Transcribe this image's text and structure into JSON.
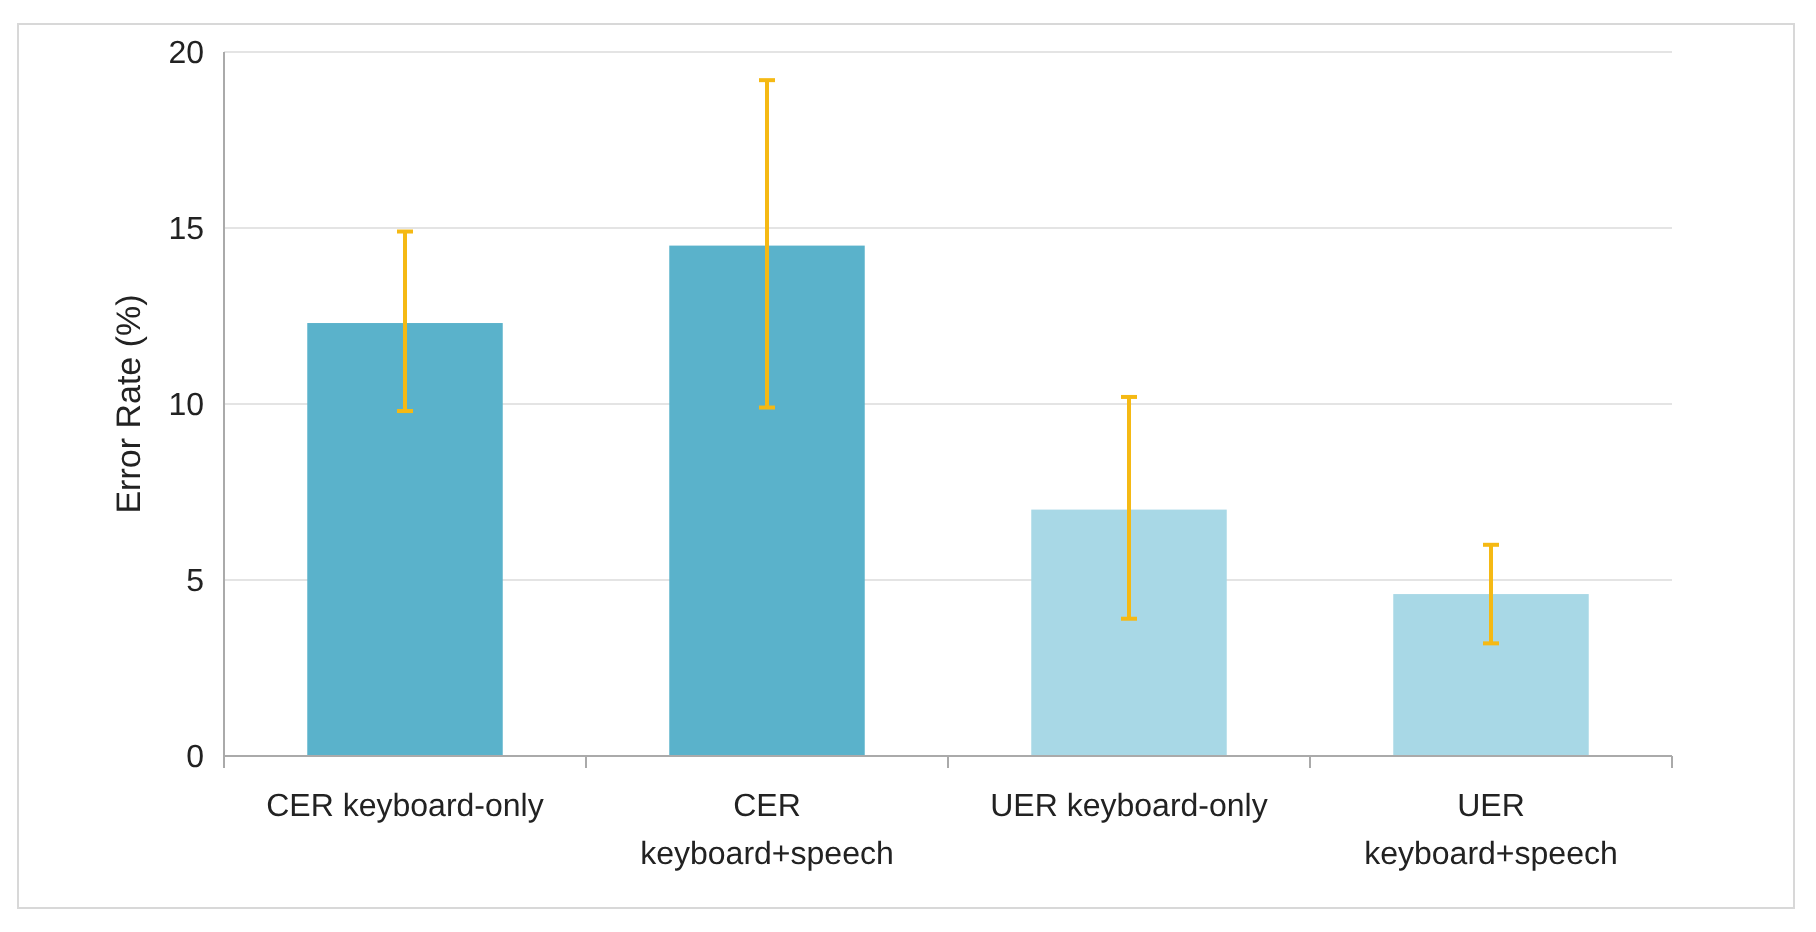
{
  "chart_data": {
    "type": "bar",
    "ylabel": "Error Rate (%)",
    "categories": [
      "CER keyboard-only",
      "CER\nkeyboard+speech",
      "UER keyboard-only",
      "UER\nkeyboard+speech"
    ],
    "values": [
      12.3,
      14.5,
      7.0,
      4.6
    ],
    "colors": [
      "#5ab2cb",
      "#5ab2cb",
      "#a8d8e6",
      "#a8d8e6"
    ],
    "errors": [
      [
        9.8,
        14.9
      ],
      [
        9.9,
        19.2
      ],
      [
        3.9,
        10.2
      ],
      [
        3.2,
        6.0
      ]
    ],
    "ylim": [
      0,
      20
    ],
    "yticks": [
      0,
      5,
      10,
      15,
      20
    ],
    "grid": "y"
  }
}
